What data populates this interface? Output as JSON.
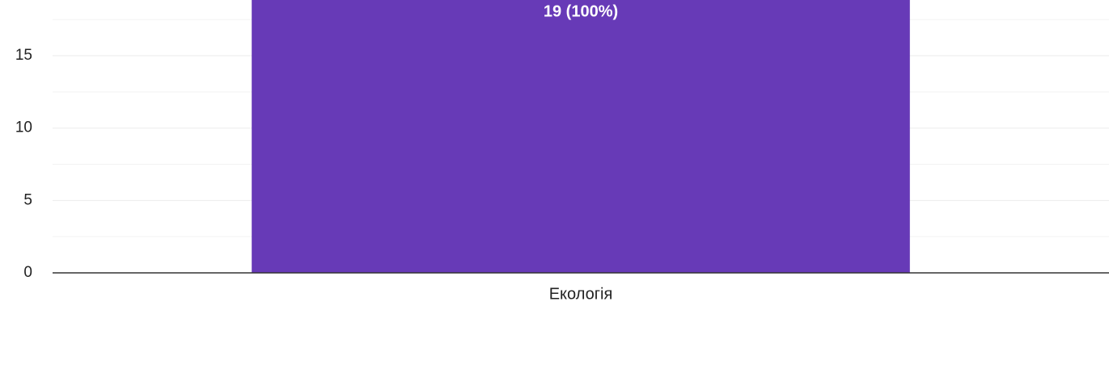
{
  "chart_data": {
    "type": "bar",
    "categories": [
      "Екологія"
    ],
    "values": [
      19
    ],
    "value_labels": [
      "19 (100%)"
    ],
    "color": "#673ab7",
    "ylim": [
      0,
      20
    ],
    "yticks": [
      0,
      5,
      10,
      15
    ],
    "yminorticks": [
      2.5,
      7.5,
      12.5,
      17.5
    ],
    "grid": true
  }
}
